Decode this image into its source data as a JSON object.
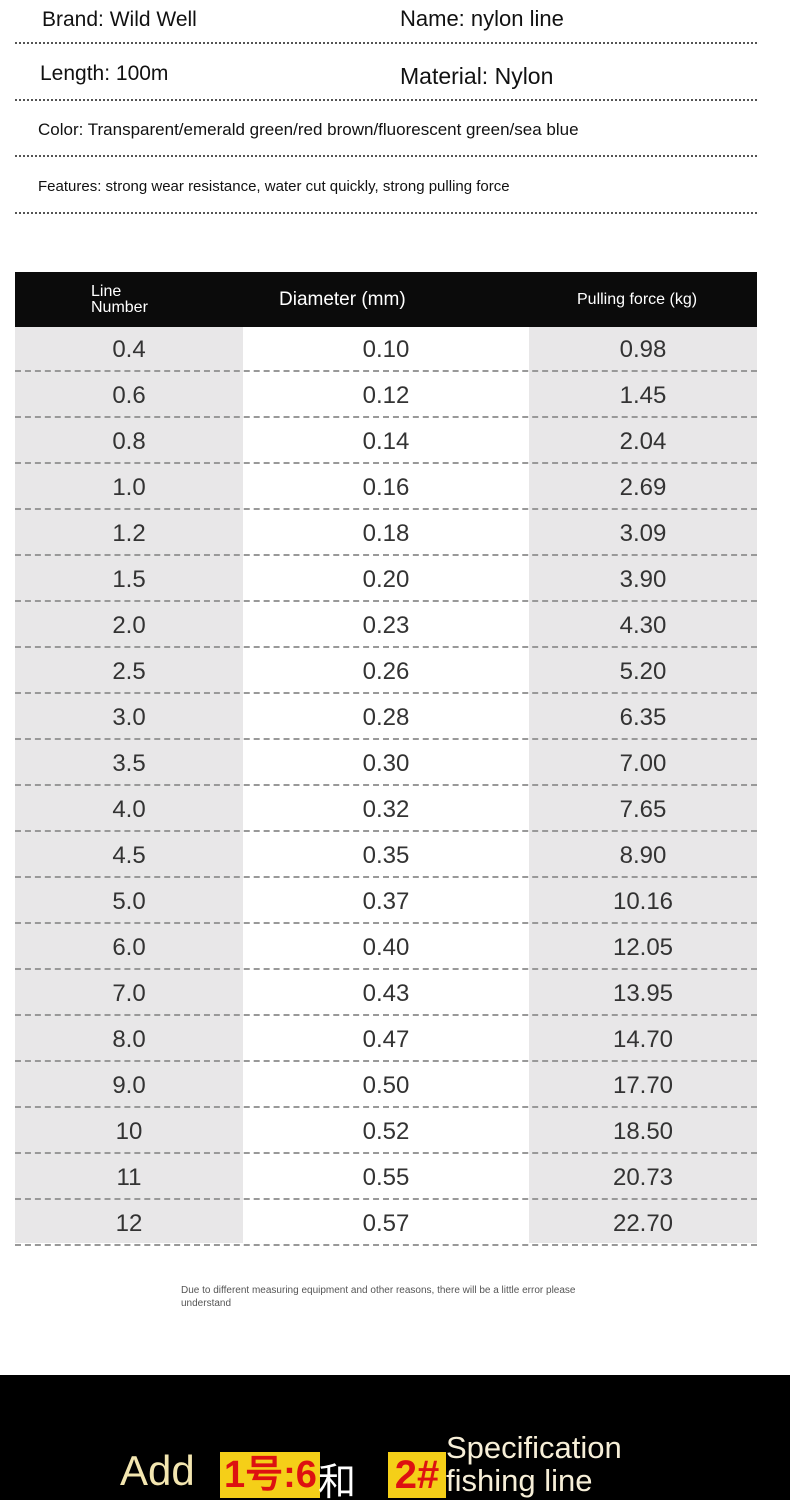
{
  "info": {
    "brand": "Brand: Wild Well",
    "name": "Name: nylon line",
    "length": "Length: 100m",
    "material": "Material: Nylon",
    "color": "Color: Transparent/emerald green/red brown/fluorescent green/sea blue",
    "features": "Features: strong wear resistance, water cut quickly, strong pulling force"
  },
  "table": {
    "headers": [
      "Line Number",
      "Diameter (mm)",
      "Pulling force (kg)"
    ],
    "rows": [
      [
        "0.4",
        "0.10",
        "0.98"
      ],
      [
        "0.6",
        "0.12",
        "1.45"
      ],
      [
        "0.8",
        "0.14",
        "2.04"
      ],
      [
        "1.0",
        "0.16",
        "2.69"
      ],
      [
        "1.2",
        "0.18",
        "3.09"
      ],
      [
        "1.5",
        "0.20",
        "3.90"
      ],
      [
        "2.0",
        "0.23",
        "4.30"
      ],
      [
        "2.5",
        "0.26",
        "5.20"
      ],
      [
        "3.0",
        "0.28",
        "6.35"
      ],
      [
        "3.5",
        "0.30",
        "7.00"
      ],
      [
        "4.0",
        "0.32",
        "7.65"
      ],
      [
        "4.5",
        "0.35",
        "8.90"
      ],
      [
        "5.0",
        "0.37",
        "10.16"
      ],
      [
        "6.0",
        "0.40",
        "12.05"
      ],
      [
        "7.0",
        "0.43",
        "13.95"
      ],
      [
        "8.0",
        "0.47",
        "14.70"
      ],
      [
        "9.0",
        "0.50",
        "17.70"
      ],
      [
        "10",
        "0.52",
        "18.50"
      ],
      [
        "11",
        "0.55",
        "20.73"
      ],
      [
        "12",
        "0.57",
        "22.70"
      ]
    ]
  },
  "note": "Due to different measuring equipment and other reasons, there will be a little error please understand",
  "banner": {
    "add": "Add",
    "box1": "1号:6",
    "after1": "和",
    "box2": "2#",
    "spec": "Specification fishing line"
  }
}
